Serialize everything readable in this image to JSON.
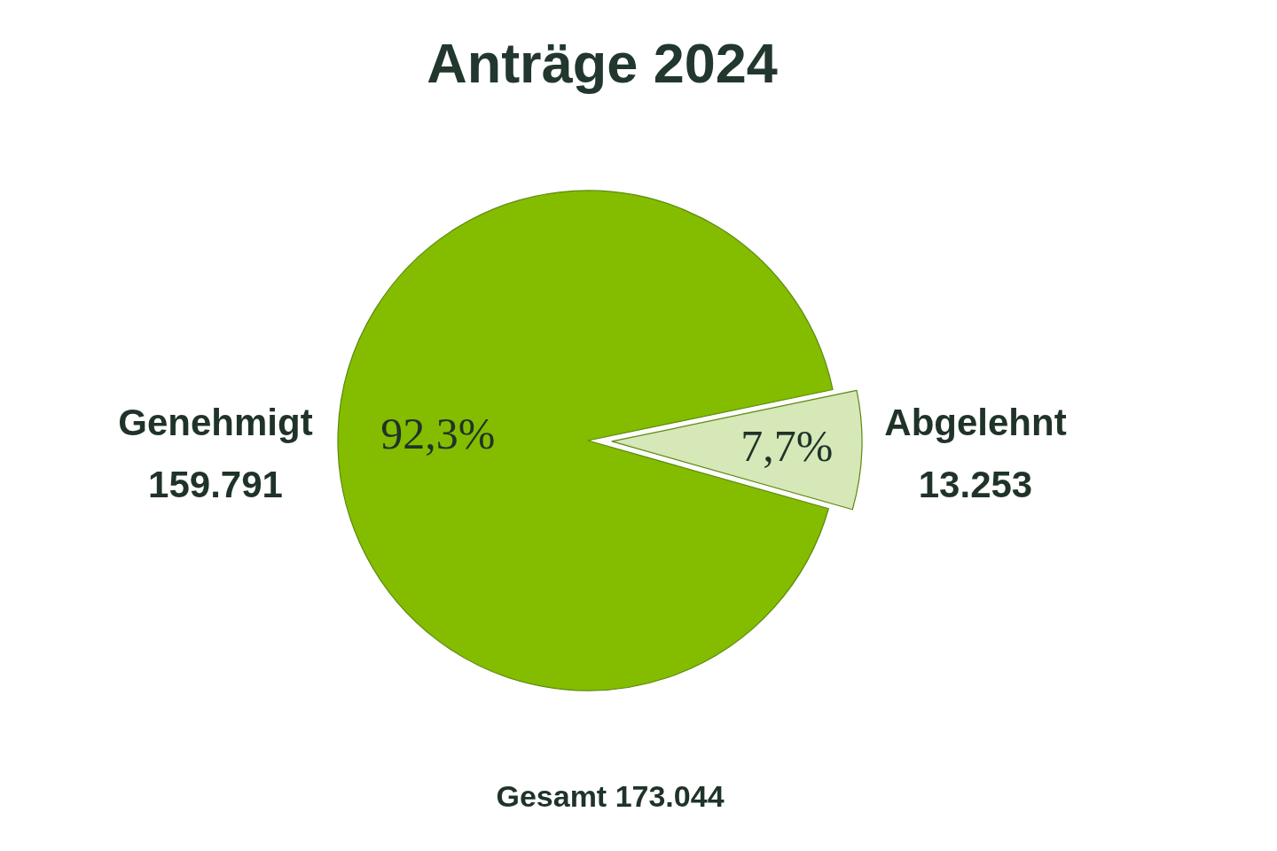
{
  "chart_data": {
    "type": "pie",
    "title": "Anträge 2024",
    "categories": [
      "Genehmigt",
      "Abgelehnt"
    ],
    "values": [
      159791,
      13253
    ],
    "colors": [
      "#84bc00",
      "#d6e7b8"
    ],
    "value_labels": [
      "159.791",
      "13.253"
    ],
    "annotations": [
      {
        "text": "92,3%",
        "x": "Genehmigt"
      },
      {
        "text": "7,7%",
        "x": "Abgelehnt"
      },
      "Gesamt 173.044"
    ]
  }
}
